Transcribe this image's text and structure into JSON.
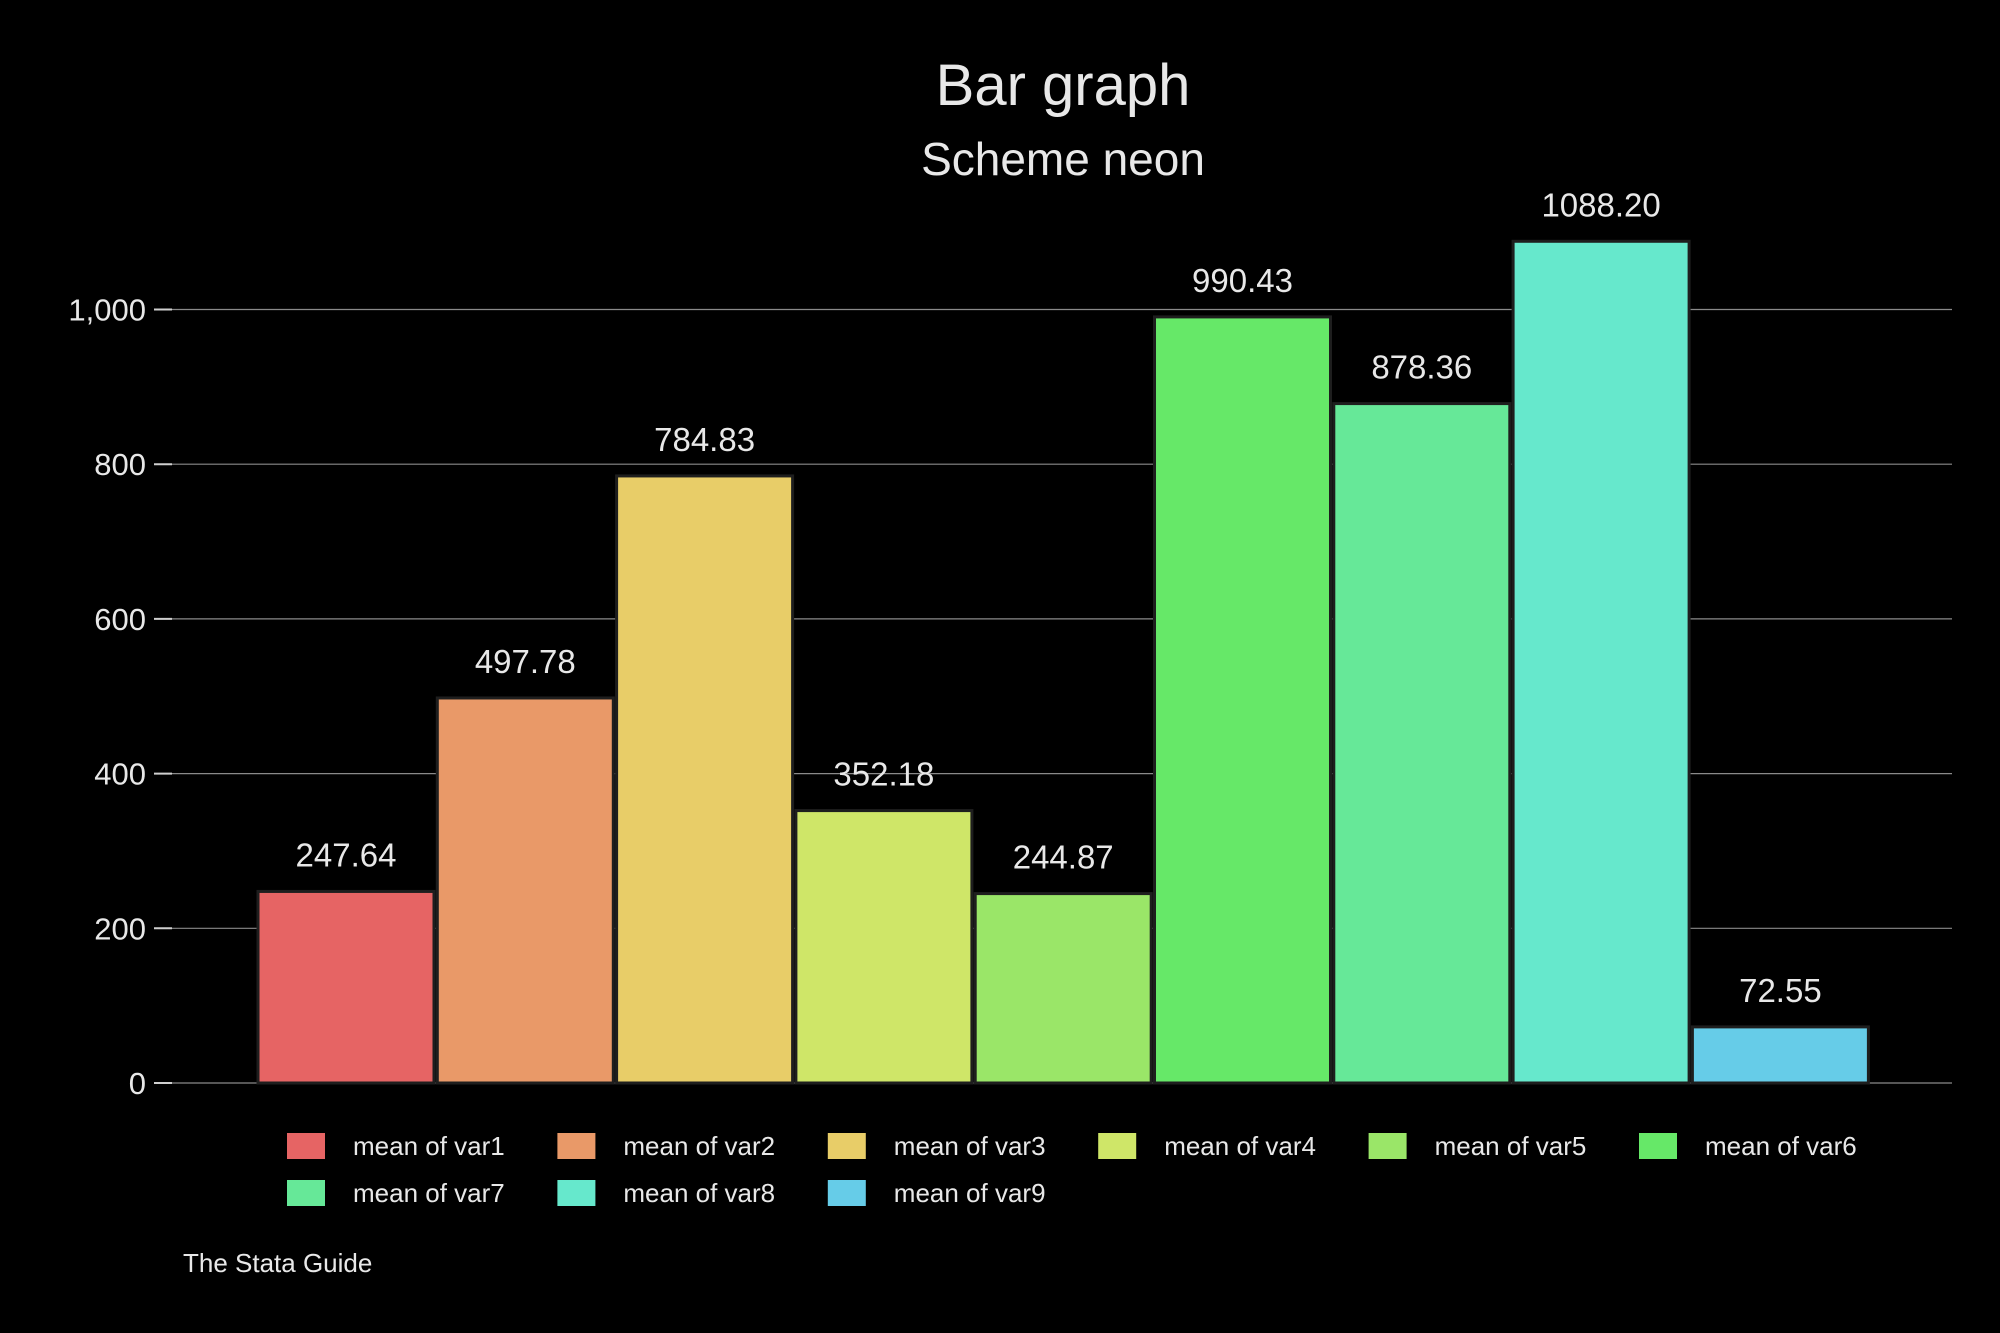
{
  "chart_data": {
    "type": "bar",
    "title": "Bar graph",
    "subtitle": "Scheme neon",
    "note": "The Stata Guide",
    "ylim": [
      0,
      1100
    ],
    "yticks": [
      0,
      200,
      400,
      600,
      800,
      1000
    ],
    "ytick_labels": [
      "0",
      "200",
      "400",
      "600",
      "800",
      "1,000"
    ],
    "grid": true,
    "legend_position": "bottom",
    "series": [
      {
        "name": "mean of var1",
        "value": 247.64,
        "label": "247.64",
        "color": "#e66464"
      },
      {
        "name": "mean of var2",
        "value": 497.78,
        "label": "497.78",
        "color": "#e99968"
      },
      {
        "name": "mean of var3",
        "value": 784.83,
        "label": "784.83",
        "color": "#e8cd68"
      },
      {
        "name": "mean of var4",
        "value": 352.18,
        "label": "352.18",
        "color": "#cfe668"
      },
      {
        "name": "mean of var5",
        "value": 244.87,
        "label": "244.87",
        "color": "#9ae668"
      },
      {
        "name": "mean of var6",
        "value": 990.43,
        "label": "990.43",
        "color": "#66e868"
      },
      {
        "name": "mean of var7",
        "value": 878.36,
        "label": "878.36",
        "color": "#66e898"
      },
      {
        "name": "mean of var8",
        "value": 1088.2,
        "label": "1088.20",
        "color": "#66e8cc"
      },
      {
        "name": "mean of var9",
        "value": 72.55,
        "label": "72.55",
        "color": "#66cce8"
      }
    ]
  }
}
